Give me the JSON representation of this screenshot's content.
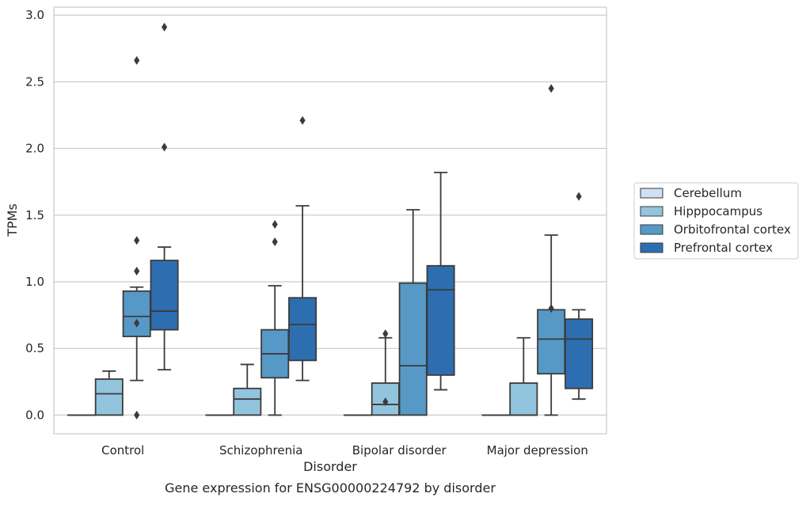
{
  "chart_data": {
    "type": "box",
    "title": "",
    "caption": "Gene expression for ENSG00000224792 by disorder",
    "xlabel": "Disorder",
    "ylabel": "TPMs",
    "ylim": [
      -0.14,
      3.06
    ],
    "yticks": [
      "0.0",
      "0.5",
      "1.0",
      "1.5",
      "2.0",
      "2.5",
      "3.0"
    ],
    "grid": "horizontal",
    "legend_placement": "outside-right",
    "categories": [
      "Control",
      "Schizophrenia",
      "Bipolar disorder",
      "Major depression"
    ],
    "series": [
      {
        "name": "Cerebellum",
        "color": "#cfe1f2",
        "boxes": [
          {
            "whislo": 0,
            "q1": 0,
            "med": 0,
            "q3": 0,
            "whishi": 0,
            "fliers": []
          },
          {
            "whislo": 0,
            "q1": 0,
            "med": 0,
            "q3": 0,
            "whishi": 0,
            "fliers": []
          },
          {
            "whislo": 0,
            "q1": 0,
            "med": 0,
            "q3": 0,
            "whishi": 0,
            "fliers": []
          },
          {
            "whislo": 0,
            "q1": 0,
            "med": 0,
            "q3": 0,
            "whishi": 0,
            "fliers": []
          }
        ]
      },
      {
        "name": "Hipppocampus",
        "color": "#93c4de",
        "boxes": [
          {
            "whislo": 0,
            "q1": 0,
            "med": 0.16,
            "q3": 0.27,
            "whishi": 0.33,
            "fliers": []
          },
          {
            "whislo": 0,
            "q1": 0,
            "med": 0.12,
            "q3": 0.2,
            "whishi": 0.38,
            "fliers": []
          },
          {
            "whislo": 0,
            "q1": 0,
            "med": 0.08,
            "q3": 0.24,
            "whishi": 0.58,
            "fliers": [
              0.1,
              0.61
            ]
          },
          {
            "whislo": 0,
            "q1": 0,
            "med": 0,
            "q3": 0.24,
            "whishi": 0.58,
            "fliers": []
          }
        ]
      },
      {
        "name": "Orbitofrontal cortex",
        "color": "#5799c6",
        "boxes": [
          {
            "whislo": 0.26,
            "q1": 0.59,
            "med": 0.74,
            "q3": 0.93,
            "whishi": 0.96,
            "fliers": [
              0,
              0.69,
              1.08,
              1.31,
              2.66
            ]
          },
          {
            "whislo": 0,
            "q1": 0.28,
            "med": 0.46,
            "q3": 0.64,
            "whishi": 0.97,
            "fliers": [
              1.3,
              1.43
            ]
          },
          {
            "whislo": 0,
            "q1": 0,
            "med": 0.37,
            "q3": 0.99,
            "whishi": 1.54,
            "fliers": []
          },
          {
            "whislo": 0,
            "q1": 0.31,
            "med": 0.57,
            "q3": 0.79,
            "whishi": 1.35,
            "fliers": [
              0.8,
              2.45
            ]
          }
        ]
      },
      {
        "name": "Prefrontal cortex",
        "color": "#2d6eb0",
        "boxes": [
          {
            "whislo": 0.34,
            "q1": 0.64,
            "med": 0.78,
            "q3": 1.16,
            "whishi": 1.26,
            "fliers": [
              2.01,
              2.91
            ]
          },
          {
            "whislo": 0.26,
            "q1": 0.41,
            "med": 0.68,
            "q3": 0.88,
            "whishi": 1.57,
            "fliers": [
              2.21
            ]
          },
          {
            "whislo": 0.19,
            "q1": 0.3,
            "med": 0.94,
            "q3": 1.12,
            "whishi": 1.82,
            "fliers": []
          },
          {
            "whislo": 0.12,
            "q1": 0.2,
            "med": 0.57,
            "q3": 0.72,
            "whishi": 0.79,
            "fliers": [
              1.64
            ]
          }
        ]
      }
    ]
  }
}
